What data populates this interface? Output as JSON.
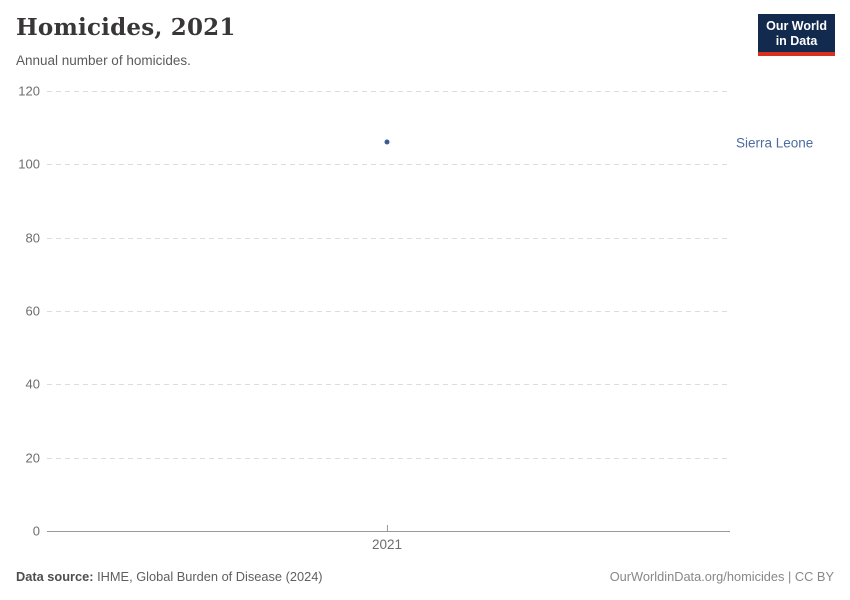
{
  "header": {
    "title": "Homicides, 2021",
    "subtitle": "Annual number of homicides.",
    "logo": {
      "line1": "Our World",
      "line2": "in Data"
    }
  },
  "footer": {
    "datasource_label": "Data source:",
    "datasource_value": "IHME, Global Burden of Disease (2024)",
    "credit": "OurWorldinData.org/homicides | CC BY"
  },
  "colors": {
    "accent_blue": "#4c6c9e",
    "point_blue": "#3c5a96",
    "logo_navy": "#122a4e",
    "logo_red": "#d8301f",
    "gridline": "#dcdcdc",
    "axis_line": "#999999",
    "tick_text": "#6e6e6e"
  },
  "chart_data": {
    "type": "scatter",
    "title": "Homicides, 2021",
    "subtitle": "Annual number of homicides.",
    "categories": [
      2021
    ],
    "xtick_labels": [
      "2021"
    ],
    "series": [
      {
        "name": "Sierra Leone",
        "values": [
          106
        ],
        "color": "#3c5a96",
        "label_color": "#4c6c9e"
      }
    ],
    "xlabel": "",
    "ylabel": "",
    "ylim": [
      0,
      120
    ],
    "yticks": [
      0,
      20,
      40,
      60,
      80,
      100,
      120
    ],
    "grid": true,
    "gridline_style": "dashed",
    "legend_position": "right-of-plot"
  }
}
